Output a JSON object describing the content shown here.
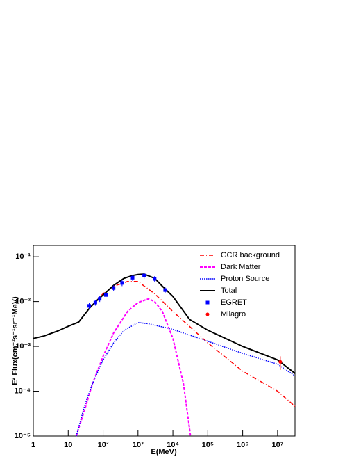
{
  "chart_data": {
    "type": "line",
    "log_x": true,
    "log_y": true,
    "xlabel": "E(MeV)",
    "ylabel": "E² Flux(cm⁻²s⁻¹sr⁻¹MeV)",
    "xlim": [
      1,
      31600000
    ],
    "ylim": [
      1e-05,
      0.178
    ],
    "xticks": [
      1,
      10,
      {
        "value": 100,
        "label": "10²"
      },
      {
        "value": 1000,
        "label": "10³"
      },
      {
        "value": 10000,
        "label": "10⁴"
      },
      {
        "value": 100000,
        "label": "10⁵"
      },
      {
        "value": 1000000,
        "label": "10⁶"
      },
      {
        "value": 10000000,
        "label": "10⁷"
      }
    ],
    "yticks": [
      {
        "value": 1e-05,
        "label": "10⁻⁵"
      },
      {
        "value": 0.0001,
        "label": "10⁻⁴"
      },
      {
        "value": 0.001,
        "label": "10⁻³"
      },
      {
        "value": 0.01,
        "label": "10⁻²"
      },
      {
        "value": 0.1,
        "label": "10⁻¹"
      }
    ],
    "legend": "upper right",
    "series": [
      {
        "name": "GCR background",
        "color": "#ff0000",
        "dash": "6 3 1 3",
        "width": 1.5,
        "x": [
          40,
          100,
          200,
          500,
          1000,
          3000,
          10000,
          100000,
          1000000,
          10000000,
          31600000
        ],
        "values": [
          0.007,
          0.015,
          0.022,
          0.028,
          0.028,
          0.015,
          0.006,
          0.0012,
          0.00028,
          0.0001,
          4.6e-05
        ]
      },
      {
        "name": "Dark Matter",
        "color": "#ff00ff",
        "dash": "4 2",
        "width": 2,
        "x": [
          17,
          30,
          50,
          100,
          200,
          500,
          1000,
          2000,
          3000,
          5000,
          10000,
          20000,
          32000
        ],
        "values": [
          1e-05,
          4e-05,
          0.00015,
          0.0006,
          0.002,
          0.006,
          0.0095,
          0.0115,
          0.01,
          0.006,
          0.0015,
          0.00015,
          1e-05
        ]
      },
      {
        "name": "Proton Source",
        "color": "#0000ff",
        "dash": "1.5 1.5",
        "width": 1.5,
        "x": [
          17,
          30,
          50,
          100,
          200,
          400,
          1000,
          2000,
          10000,
          100000,
          1000000,
          10000000,
          31600000
        ],
        "values": [
          1e-05,
          5e-05,
          0.00015,
          0.0005,
          0.0012,
          0.0023,
          0.0034,
          0.0032,
          0.0024,
          0.0013,
          0.0007,
          0.0004,
          0.00022
        ]
      },
      {
        "name": "Total",
        "color": "#000000",
        "dash": "none",
        "width": 2,
        "x": [
          1,
          2,
          5,
          10,
          20,
          40,
          70,
          100,
          200,
          400,
          700,
          1000,
          1500,
          3000,
          5000,
          10000,
          30000,
          100000,
          1000000,
          10000000,
          31600000
        ],
        "values": [
          0.0015,
          0.0017,
          0.0022,
          0.0028,
          0.0035,
          0.007,
          0.011,
          0.014,
          0.023,
          0.033,
          0.038,
          0.04,
          0.041,
          0.033,
          0.022,
          0.013,
          0.004,
          0.0023,
          0.001,
          0.0005,
          0.00025
        ]
      },
      {
        "name": "EGRET",
        "color": "#0000ff",
        "marker": "square",
        "x": [
          40,
          60,
          80,
          120,
          200,
          350,
          700,
          1500,
          3000,
          6000
        ],
        "values": [
          0.008,
          0.0095,
          0.0115,
          0.014,
          0.02,
          0.026,
          0.034,
          0.038,
          0.032,
          0.018
        ],
        "errors": [
          0.0012,
          0.0014,
          0.0017,
          0.0021,
          0.003,
          0.0039,
          0.0051,
          0.0057,
          0.0048,
          0.0027
        ]
      },
      {
        "name": "Milagro",
        "color": "#ff0000",
        "marker": "circle",
        "x": [
          12000000
        ],
        "values": [
          0.00045
        ],
        "errors": [
          0.00015
        ]
      }
    ]
  }
}
